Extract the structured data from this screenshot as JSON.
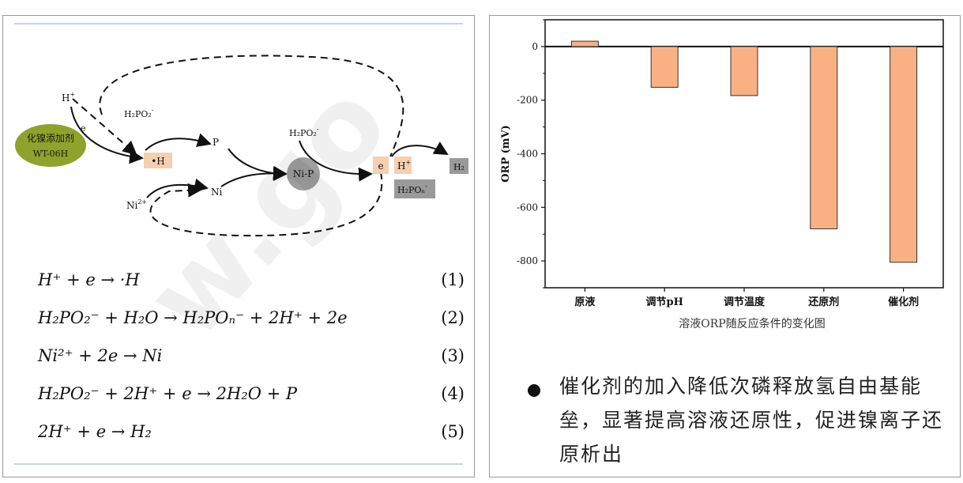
{
  "mechanism": {
    "additive_title": "化镍添加剂",
    "additive_model": "WT-06H",
    "labels": {
      "h_plus_top": "H",
      "h_plus_sup": "+",
      "e_small": "e",
      "h2po2_a": "H₂PO₂",
      "h2po2_b": "H₂PO₂",
      "minus": "-",
      "radical_h": "•H",
      "p": "P",
      "ni": "Ni",
      "ni2": "Ni",
      "ni2_sup": "2+",
      "nip": "Ni-P",
      "e_box": "e",
      "h_box": "H",
      "h_box_sup": "+",
      "h2po_n": "H₂POₙ",
      "h2": "H₂"
    },
    "colors": {
      "additive": "#8fa22b",
      "box_peach": "#f5cfb0",
      "box_gray": "#9a9a9a",
      "nip_circle": "#9f9f9f"
    }
  },
  "equations": [
    {
      "text": "H⁺ + e → ·H",
      "num": "(1)"
    },
    {
      "text": "H₂PO₂⁻ + H₂O → H₂POₙ⁻ + 2H⁺ + 2e",
      "num": "(2)"
    },
    {
      "text": "Ni²⁺ + 2e → Ni",
      "num": "(3)"
    },
    {
      "text": "H₂PO₂⁻ + 2H⁺ + e → 2H₂O + P",
      "num": "(4)"
    },
    {
      "text": "2H⁺ + e → H₂",
      "num": "(5)"
    }
  ],
  "chart_data": {
    "type": "bar",
    "categories": [
      "原液",
      "调节pH",
      "调节温度",
      "还原剂",
      "催化剂"
    ],
    "values": [
      20,
      -152,
      -183,
      -680,
      -805
    ],
    "ylabel": "ORP (mV)",
    "ylim": [
      -900,
      100
    ],
    "yticks": [
      0,
      -200,
      -400,
      -600,
      -800
    ],
    "ytick_labels": [
      "0",
      "-200",
      "-400",
      "-600",
      "-800"
    ],
    "bar_color": "#f9b184",
    "caption": "溶液ORP随反应条件的变化图"
  },
  "bullet": {
    "text": "催化剂的加入降低次磷释放氢自由基能垒，显著提高溶液还原性，促进镍离子还原析出"
  },
  "watermark": "w.go"
}
